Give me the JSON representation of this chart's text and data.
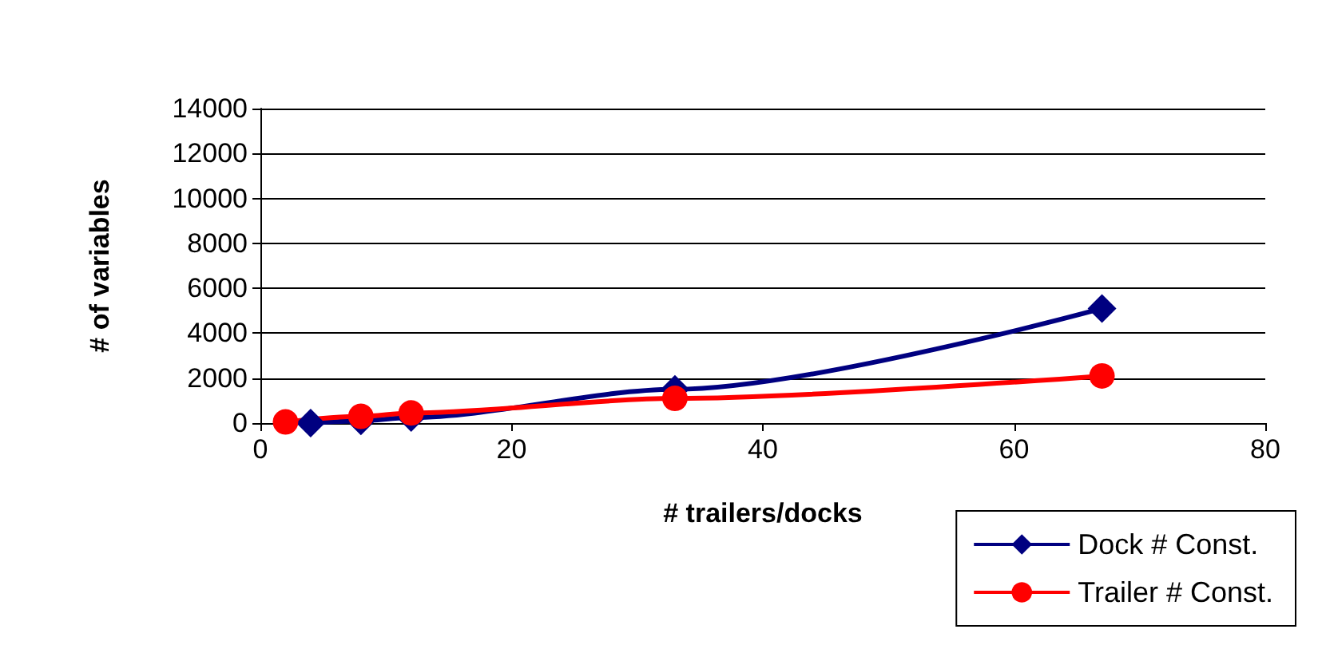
{
  "chart_data": {
    "type": "line",
    "xlabel": "# trailers/docks",
    "ylabel": "# of variables",
    "xlim": [
      0,
      80
    ],
    "xticks": [
      0,
      20,
      40,
      60,
      80
    ],
    "ylim": [
      0,
      14000
    ],
    "yticks": [
      0,
      2000,
      4000,
      6000,
      8000,
      10000,
      12000,
      14000
    ],
    "grid": "y",
    "legend": "bottom right",
    "series": [
      {
        "name": "Dock # Const.",
        "color": "#000080",
        "marker": "diamond",
        "x": [
          4,
          8,
          12,
          33,
          67
        ],
        "values": [
          0,
          100,
          250,
          1500,
          5100
        ]
      },
      {
        "name": "Trailer # Const.",
        "color": "#ff0000",
        "marker": "circle",
        "x": [
          2,
          8,
          12,
          33,
          67
        ],
        "values": [
          50,
          300,
          450,
          1100,
          2100
        ]
      }
    ]
  }
}
